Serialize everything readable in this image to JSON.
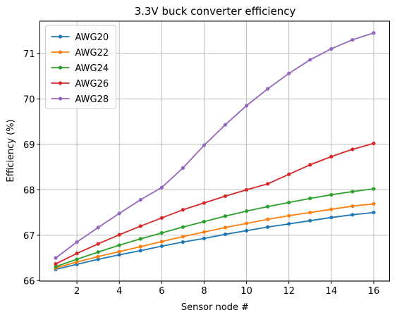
{
  "chart_data": {
    "type": "line",
    "title": "3.3V buck converter efficiency",
    "xlabel": "Sensor node #",
    "ylabel": "Efficiency (%)",
    "x": [
      1,
      2,
      3,
      4,
      5,
      6,
      7,
      8,
      9,
      10,
      11,
      12,
      13,
      14,
      15,
      16
    ],
    "series": [
      {
        "name": "AWG20",
        "color": "#1f77b4",
        "values": [
          66.25,
          66.36,
          66.47,
          66.57,
          66.66,
          66.76,
          66.85,
          66.93,
          67.02,
          67.1,
          67.18,
          67.25,
          67.32,
          67.39,
          67.45,
          67.5
        ]
      },
      {
        "name": "AWG22",
        "color": "#ff7f0e",
        "values": [
          66.28,
          66.41,
          66.53,
          66.64,
          66.75,
          66.86,
          66.97,
          67.07,
          67.17,
          67.26,
          67.35,
          67.43,
          67.5,
          67.57,
          67.64,
          67.69
        ]
      },
      {
        "name": "AWG24",
        "color": "#2ca02c",
        "values": [
          66.31,
          66.47,
          66.63,
          66.78,
          66.92,
          67.05,
          67.18,
          67.3,
          67.42,
          67.53,
          67.63,
          67.72,
          67.81,
          67.89,
          67.96,
          68.02
        ]
      },
      {
        "name": "AWG26",
        "color": "#d62728",
        "values": [
          66.37,
          66.6,
          66.81,
          67.01,
          67.2,
          67.38,
          67.56,
          67.71,
          67.86,
          68.0,
          68.13,
          68.34,
          68.55,
          68.73,
          68.89,
          69.02
        ]
      },
      {
        "name": "AWG28",
        "color": "#9467bd",
        "values": [
          66.5,
          66.85,
          67.17,
          67.48,
          67.78,
          68.05,
          68.48,
          68.98,
          69.43,
          69.85,
          70.22,
          70.56,
          70.86,
          71.1,
          71.3,
          71.45
        ]
      }
    ],
    "xlim": [
      0.25,
      16.75
    ],
    "xticks": [
      2,
      4,
      6,
      8,
      10,
      12,
      14,
      16
    ],
    "ylim": [
      65.99,
      71.71
    ],
    "yticks": [
      66,
      67,
      68,
      69,
      70,
      71
    ],
    "grid": true,
    "legend": "upper left"
  }
}
